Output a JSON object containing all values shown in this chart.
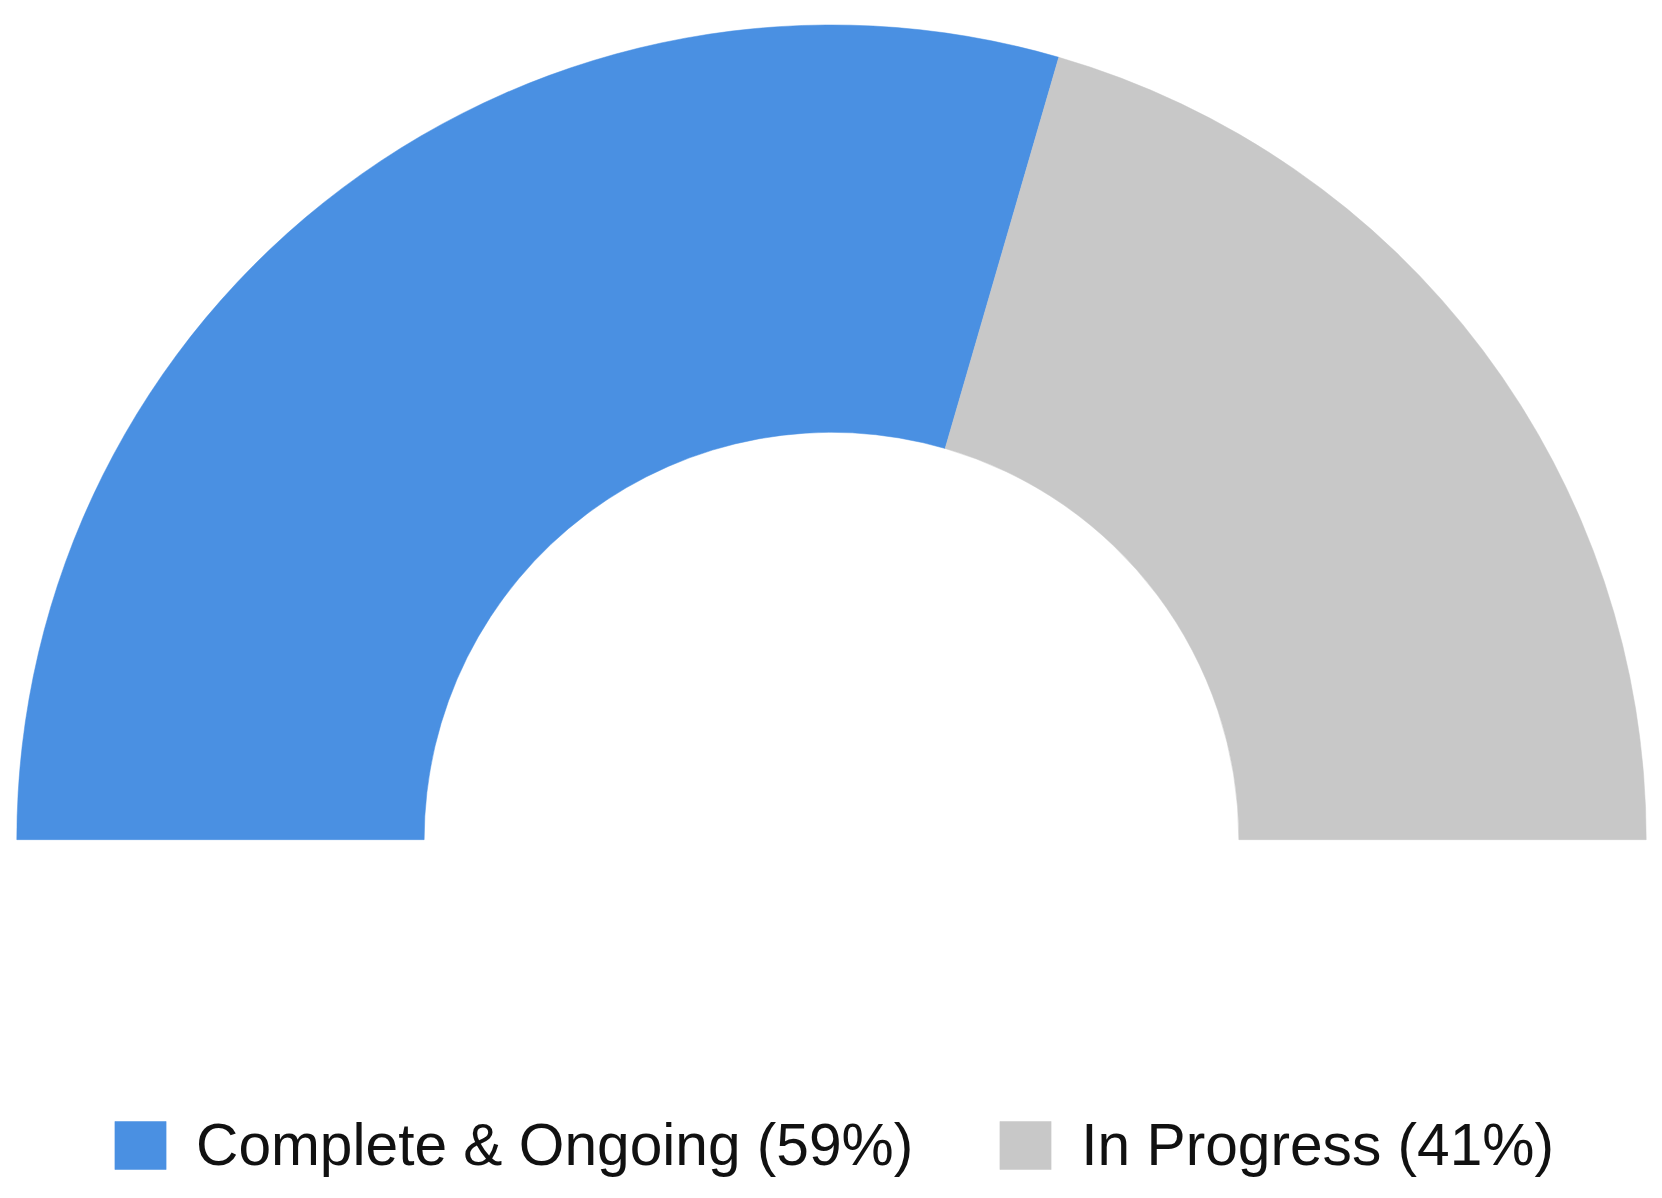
{
  "chart_data": {
    "type": "donut",
    "categories": [
      "Complete & Ongoing (59%)",
      "In Progress (41%)"
    ],
    "values": [
      59,
      41
    ],
    "colors": [
      "#4a90e2",
      "#c8c8c8"
    ],
    "legend": "bottom"
  }
}
